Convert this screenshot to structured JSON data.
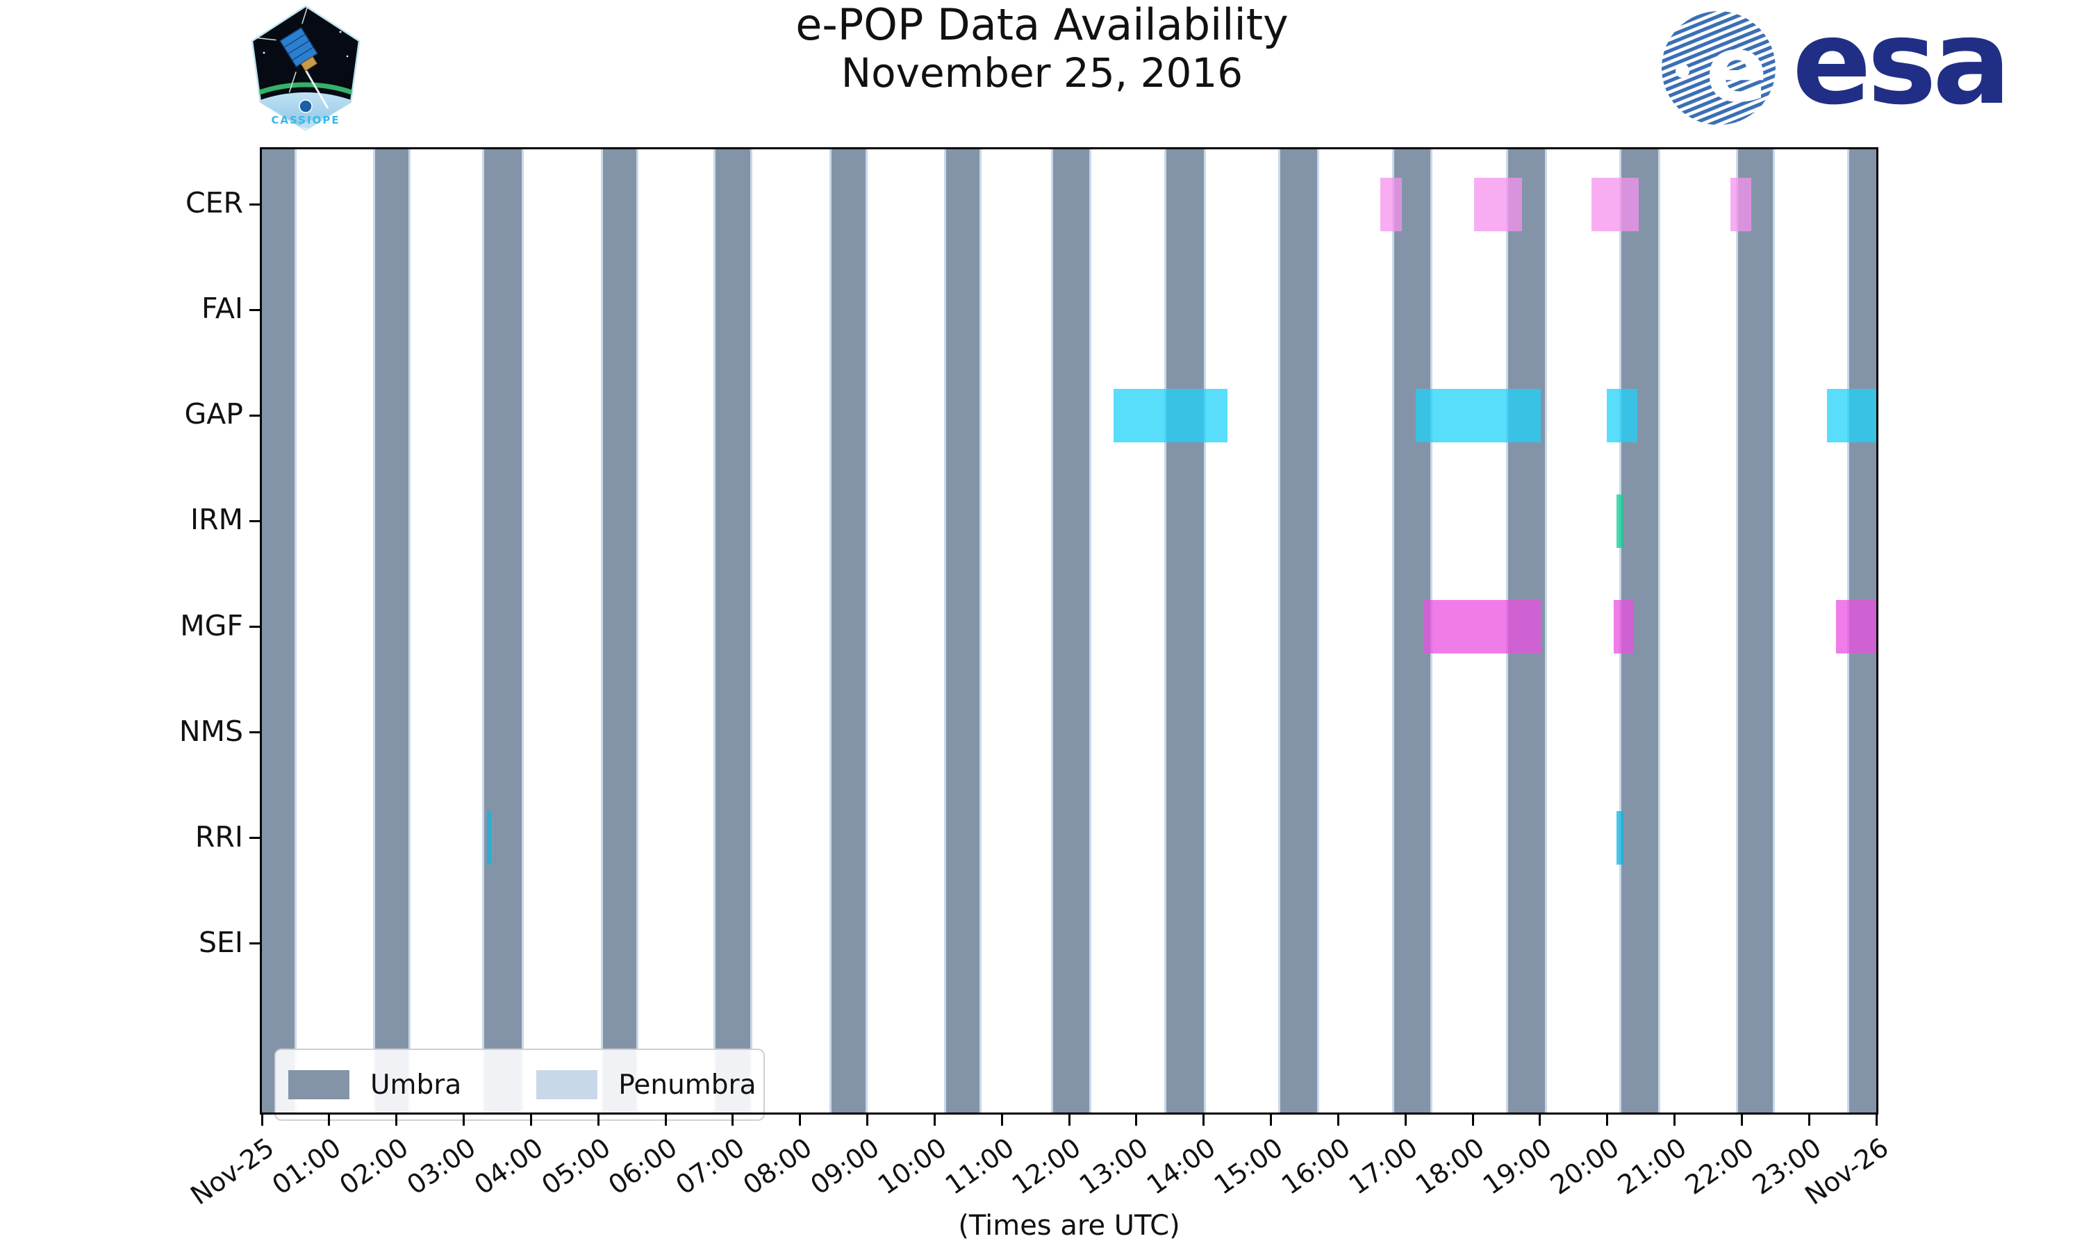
{
  "header": {
    "title": "e-POP Data Availability",
    "subtitle": "November 25, 2016",
    "cassiope_label": "CASSIOPE",
    "esa_label": "esa"
  },
  "chart_data": {
    "type": "gantt",
    "title": "e-POP Data Availability",
    "subtitle": "November 25, 2016",
    "xlabel": "(Times are UTC)",
    "x_unit": "hours UTC, 2016-11-25 00:00 to 2016-11-26 00:00",
    "xlim": [
      0,
      24
    ],
    "grid": false,
    "x_tick_labels": [
      "Nov-25",
      "01:00",
      "02:00",
      "03:00",
      "04:00",
      "05:00",
      "06:00",
      "07:00",
      "08:00",
      "09:00",
      "10:00",
      "11:00",
      "12:00",
      "13:00",
      "14:00",
      "15:00",
      "16:00",
      "17:00",
      "18:00",
      "19:00",
      "20:00",
      "21:00",
      "22:00",
      "23:00",
      "Nov-26"
    ],
    "rows": [
      "CER",
      "FAI",
      "GAP",
      "IRM",
      "MGF",
      "NMS",
      "RRI",
      "SEI"
    ],
    "umbra_color": "#8494A8",
    "penumbra_color": "#C9D8E8",
    "umbra_intervals_hours": [
      [
        0.0,
        0.49
      ],
      [
        1.68,
        2.18
      ],
      [
        3.3,
        3.86
      ],
      [
        5.07,
        5.57
      ],
      [
        6.74,
        7.26
      ],
      [
        8.47,
        8.97
      ],
      [
        10.17,
        10.67
      ],
      [
        11.76,
        12.3
      ],
      [
        13.45,
        14.0
      ],
      [
        15.14,
        15.69
      ],
      [
        16.83,
        17.37
      ],
      [
        18.53,
        19.07
      ],
      [
        20.21,
        20.76
      ],
      [
        21.95,
        22.46
      ],
      [
        23.6,
        24.0
      ]
    ],
    "series": [
      {
        "instrument": "CER",
        "color": "#F591EE",
        "intervals_hours": [
          [
            16.63,
            16.95
          ],
          [
            18.02,
            18.73
          ],
          [
            19.77,
            20.47
          ],
          [
            21.83,
            22.14
          ]
        ]
      },
      {
        "instrument": "FAI",
        "color": null,
        "intervals_hours": []
      },
      {
        "instrument": "GAP",
        "color": "#20D2F8",
        "intervals_hours": [
          [
            12.66,
            14.35
          ],
          [
            17.15,
            19.01
          ],
          [
            19.99,
            20.45
          ],
          [
            23.27,
            24.0
          ]
        ]
      },
      {
        "instrument": "IRM",
        "color": "#10CD96",
        "intervals_hours": [
          [
            20.14,
            20.24
          ]
        ]
      },
      {
        "instrument": "MGF",
        "color": "#EA50E1",
        "intervals_hours": [
          [
            17.28,
            19.01
          ],
          [
            20.1,
            20.4
          ],
          [
            23.4,
            24.0
          ]
        ]
      },
      {
        "instrument": "NMS",
        "color": null,
        "intervals_hours": []
      },
      {
        "instrument": "RRI",
        "color": "#0FB4E0",
        "intervals_hours": [
          [
            3.35,
            3.41
          ],
          [
            20.14,
            20.24
          ]
        ]
      },
      {
        "instrument": "SEI",
        "color": null,
        "intervals_hours": []
      }
    ],
    "legend": {
      "position": "lower left",
      "entries": [
        {
          "label": "Umbra",
          "color": "#8494A8"
        },
        {
          "label": "Penumbra",
          "color": "#C9D8E8"
        }
      ]
    }
  }
}
